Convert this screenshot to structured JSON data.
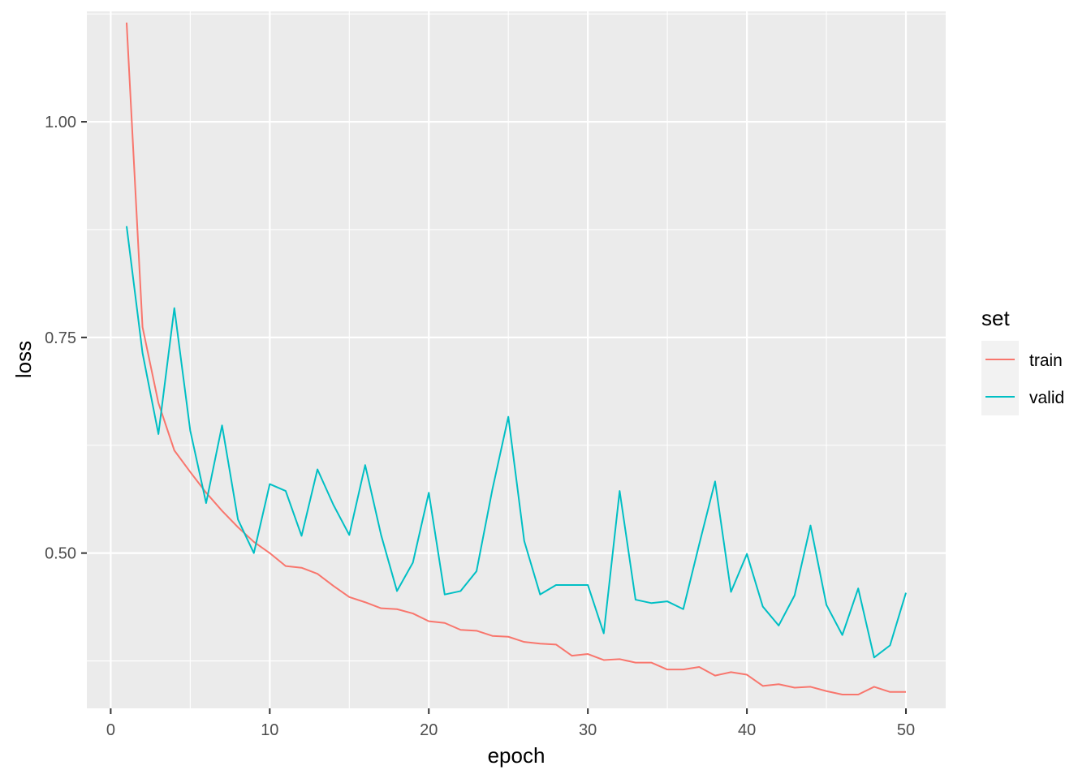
{
  "chart_data": {
    "type": "line",
    "xlabel": "epoch",
    "ylabel": "loss",
    "xlim": [
      -1.5,
      52.5
    ],
    "ylim": [
      0.32,
      1.128
    ],
    "x_ticks": [
      0,
      10,
      20,
      30,
      40,
      50
    ],
    "x_tick_labels": [
      "0",
      "10",
      "20",
      "30",
      "40",
      "50"
    ],
    "y_ticks": [
      0.5,
      0.75,
      1.0
    ],
    "y_tick_labels": [
      "0.50",
      "0.75",
      "1.00"
    ],
    "x_minor_ticks": [
      5,
      15,
      25,
      35,
      45
    ],
    "y_minor_ticks": [
      0.375,
      0.625,
      0.875,
      1.125
    ],
    "grid": true,
    "legend": {
      "title": "set",
      "position": "right"
    },
    "x": [
      1,
      2,
      3,
      4,
      5,
      6,
      7,
      8,
      9,
      10,
      11,
      12,
      13,
      14,
      15,
      16,
      17,
      18,
      19,
      20,
      21,
      22,
      23,
      24,
      25,
      26,
      27,
      28,
      29,
      30,
      31,
      32,
      33,
      34,
      35,
      36,
      37,
      38,
      39,
      40,
      41,
      42,
      43,
      44,
      45,
      46,
      47,
      48,
      49,
      50
    ],
    "series": [
      {
        "name": "train",
        "color": "#F8766D",
        "values": [
          1.115,
          0.762,
          0.674,
          0.619,
          0.594,
          0.57,
          0.549,
          0.53,
          0.513,
          0.5,
          0.485,
          0.483,
          0.476,
          0.462,
          0.449,
          0.443,
          0.436,
          0.435,
          0.43,
          0.421,
          0.419,
          0.411,
          0.41,
          0.404,
          0.403,
          0.397,
          0.395,
          0.394,
          0.381,
          0.383,
          0.376,
          0.377,
          0.373,
          0.373,
          0.365,
          0.365,
          0.368,
          0.358,
          0.362,
          0.359,
          0.346,
          0.348,
          0.344,
          0.345,
          0.34,
          0.336,
          0.336,
          0.345,
          0.339,
          0.339
        ]
      },
      {
        "name": "valid",
        "color": "#00BFC4",
        "values": [
          0.879,
          0.732,
          0.638,
          0.784,
          0.642,
          0.558,
          0.648,
          0.539,
          0.5,
          0.58,
          0.572,
          0.52,
          0.597,
          0.556,
          0.521,
          0.602,
          0.521,
          0.456,
          0.489,
          0.57,
          0.452,
          0.456,
          0.479,
          0.574,
          0.658,
          0.514,
          0.452,
          0.463,
          0.463,
          0.463,
          0.407,
          0.572,
          0.446,
          0.442,
          0.444,
          0.435,
          0.51,
          0.583,
          0.455,
          0.499,
          0.438,
          0.416,
          0.451,
          0.532,
          0.44,
          0.405,
          0.459,
          0.379,
          0.393,
          0.454
        ]
      }
    ]
  }
}
